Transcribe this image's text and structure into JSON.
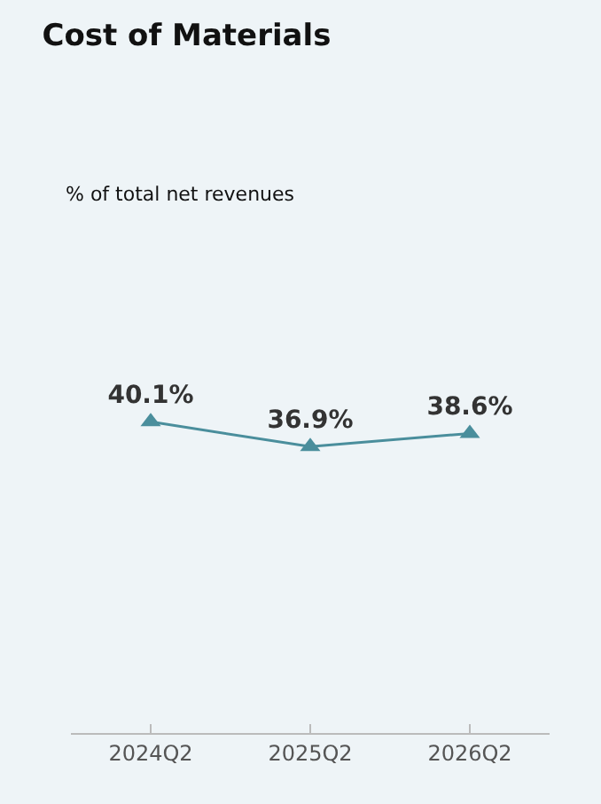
{
  "chart_data": {
    "type": "line",
    "title": "Cost of Materials",
    "subtitle": "% of total net revenues",
    "categories": [
      "2024Q2",
      "2025Q2",
      "2026Q2"
    ],
    "series": [
      {
        "color": "#4a8e9c",
        "values": [
          40.1,
          36.9,
          38.6
        ],
        "value_labels": [
          "40.1%",
          "36.9%",
          "38.6%"
        ]
      }
    ],
    "marker": "triangle",
    "line_style": "solid",
    "grid": false,
    "legend": false
  }
}
